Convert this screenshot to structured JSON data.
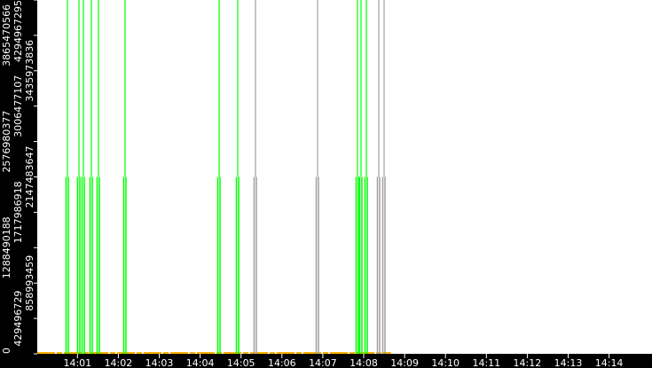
{
  "chart_data": {
    "type": "line",
    "title": "",
    "xlabel": "",
    "ylabel": "",
    "x_range": [
      "14:00:00",
      "14:15:00"
    ],
    "ylim": [
      0,
      4294967295
    ],
    "y_ticks": [
      "0",
      "429496729",
      "858993459",
      "1288490188",
      "1717986918",
      "2147483647",
      "2576980377",
      "3006477107",
      "3435973836",
      "3865470566",
      "4294967295"
    ],
    "x_ticks": [
      "14:01",
      "14:02",
      "14:03",
      "14:04",
      "14:05",
      "14:06",
      "14:07",
      "14:08",
      "14:09",
      "14:10",
      "14:11",
      "14:12",
      "14:13",
      "14:14"
    ],
    "grid": false,
    "colors": {
      "spike": "#00ff00",
      "spike_alt": "#a0a0a0",
      "baseline": "#ffb000",
      "background": "#ffffff",
      "frame": "#000000"
    },
    "series": [
      {
        "values_at": "baseline",
        "value": 0
      },
      {
        "events": [
          {
            "t": "14:00:42",
            "v": 2147483647,
            "top": 4294967295,
            "color": "#00ff00"
          },
          {
            "t": "14:01:00",
            "v": 2147483647,
            "top": 4294967295,
            "color": "#00ff00"
          },
          {
            "t": "14:01:06",
            "v": 2147483647,
            "top": 4294967295,
            "color": "#00ff00"
          },
          {
            "t": "14:01:18",
            "v": 2147483647,
            "top": 4294967295,
            "color": "#00ff00"
          },
          {
            "t": "14:01:28",
            "v": 2147483647,
            "top": 4294967295,
            "color": "#00ff00"
          },
          {
            "t": "14:02:07",
            "v": 2147483647,
            "top": 4294967295,
            "color": "#00ff00"
          },
          {
            "t": "14:04:25",
            "v": 2147483647,
            "top": 4294967295,
            "color": "#00ff00"
          },
          {
            "t": "14:04:53",
            "v": 2147483647,
            "top": 4294967295,
            "color": "#00ff00"
          },
          {
            "t": "14:05:18",
            "v": 2147483647,
            "top": 4294967295,
            "color": "#a0a0a0"
          },
          {
            "t": "14:06:50",
            "v": 2147483647,
            "top": 4294967295,
            "color": "#a0a0a0"
          },
          {
            "t": "14:07:48",
            "v": 2147483647,
            "top": 4294967295,
            "color": "#00ff00"
          },
          {
            "t": "14:07:53",
            "v": 2147483647,
            "top": 4294967295,
            "color": "#00ff00"
          },
          {
            "t": "14:08:01",
            "v": 2147483647,
            "top": 4294967295,
            "color": "#00ff00"
          },
          {
            "t": "14:08:20",
            "v": 2147483647,
            "top": 4294967295,
            "color": "#a0a0a0"
          },
          {
            "t": "14:08:27",
            "v": 2147483647,
            "top": 4294967295,
            "color": "#a0a0a0"
          }
        ]
      }
    ]
  }
}
